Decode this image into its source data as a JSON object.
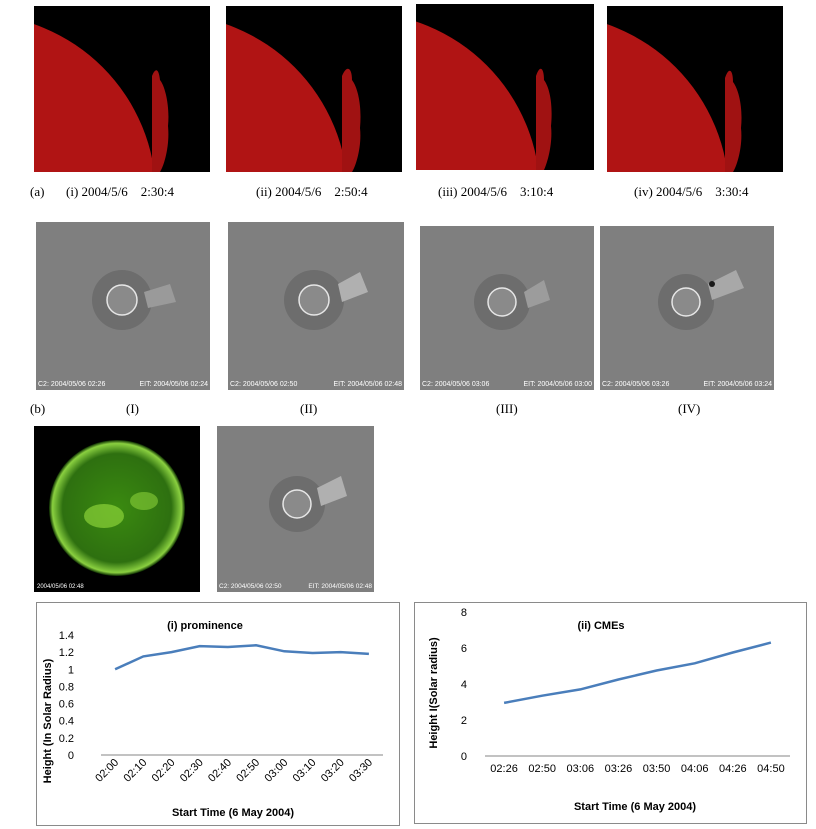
{
  "row_a": {
    "label": "(a)",
    "frames": [
      {
        "caption": "(i) 2004/5/6    2:30:4"
      },
      {
        "caption": "(ii) 2004/5/6    2:50:4"
      },
      {
        "caption": "(iii) 2004/5/6    3:10:4"
      },
      {
        "caption": "(iv) 2004/5/6    3:30:4"
      }
    ]
  },
  "row_b": {
    "label": "(b)",
    "frames": [
      {
        "caption": "(I)",
        "stamp_left": "C2: 2004/05/06 02:26",
        "stamp_right": "EIT: 2004/05/06 02:24"
      },
      {
        "caption": "(II)",
        "stamp_left": "C2: 2004/05/06 02:50",
        "stamp_right": "EIT: 2004/05/06 02:48"
      },
      {
        "caption": "(III)",
        "stamp_left": "C2: 2004/05/06 03:06",
        "stamp_right": "EIT: 2004/05/06 03:00"
      },
      {
        "caption": "(IV)",
        "stamp_left": "C2: 2004/05/06 03:26",
        "stamp_right": "EIT: 2004/05/06 03:24"
      }
    ]
  },
  "row_c": {
    "eit_stamp": "2004/05/06 02:48",
    "lasco_stamp_left": "C2: 2004/05/06 02:50",
    "lasco_stamp_right": "EIT: 2004/05/06 02:48"
  },
  "colors": {
    "sun_red": "#b01414",
    "sun_green": "#3a8a10",
    "line": "#4a7ebb",
    "lasco_gray": "#7f7f7f"
  },
  "chart_data": [
    {
      "type": "line",
      "title": "(i) prominence",
      "xlabel": "Start Time (6 May 2004)",
      "ylabel": "Height (In Solar Radius)",
      "categories": [
        "02:00",
        "02:10",
        "02:20",
        "02:30",
        "02:40",
        "02:50",
        "03:00",
        "03:10",
        "03:20",
        "03:30"
      ],
      "values": [
        1.0,
        1.15,
        1.2,
        1.27,
        1.26,
        1.28,
        1.21,
        1.19,
        1.2,
        1.18
      ],
      "ylim": [
        0,
        1.4
      ],
      "yticks": [
        "0",
        "0.2",
        "0.4",
        "0.6",
        "0.8",
        "1",
        "1.2",
        "1.4"
      ],
      "grid": false
    },
    {
      "type": "line",
      "title": "(ii) CMEs",
      "xlabel": "Start Time (6 May 2004)",
      "ylabel": "Height I(Solar radius)",
      "categories": [
        "02:26",
        "02:50",
        "03:06",
        "03:26",
        "03:50",
        "04:06",
        "04:26",
        "04:50"
      ],
      "values": [
        2.95,
        3.35,
        3.7,
        4.25,
        4.75,
        5.15,
        5.75,
        6.3
      ],
      "ylim": [
        0,
        8
      ],
      "yticks": [
        "0",
        "2",
        "4",
        "6",
        "8"
      ],
      "grid": false
    }
  ]
}
